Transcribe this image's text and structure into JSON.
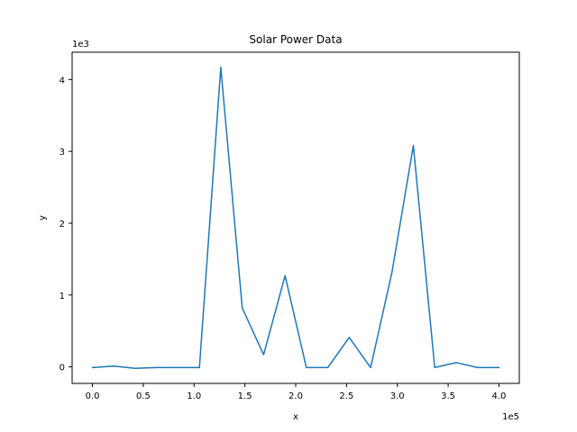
{
  "chart_data": {
    "type": "line",
    "title": "Solar Power Data",
    "xlabel": "x",
    "ylabel": "y",
    "x_scale_label": "1e5",
    "y_scale_label": "1e3",
    "xlim": [
      -20000,
      420000
    ],
    "ylim": [
      -230,
      4380
    ],
    "x_ticks": [
      0,
      50000,
      100000,
      150000,
      200000,
      250000,
      300000,
      350000,
      400000
    ],
    "x_tick_labels": [
      "0.0",
      "0.5",
      "1.0",
      "1.5",
      "2.0",
      "2.5",
      "3.0",
      "3.5",
      "4.0"
    ],
    "y_ticks": [
      0,
      1000,
      2000,
      3000,
      4000
    ],
    "y_tick_labels": [
      "0",
      "1",
      "2",
      "3",
      "4"
    ],
    "grid": false,
    "series": [
      {
        "color": "#1f77b4",
        "x": [
          0,
          21000,
          42100,
          63200,
          84200,
          105300,
          126300,
          147400,
          168400,
          189500,
          210500,
          231600,
          252600,
          273700,
          294700,
          315800,
          336800,
          357900,
          378900,
          400000
        ],
        "y": [
          -10,
          10,
          -20,
          -10,
          -10,
          -10,
          4170,
          820,
          170,
          1270,
          -10,
          -10,
          410,
          -10,
          1320,
          3080,
          -10,
          60,
          -10,
          -10
        ]
      }
    ]
  }
}
